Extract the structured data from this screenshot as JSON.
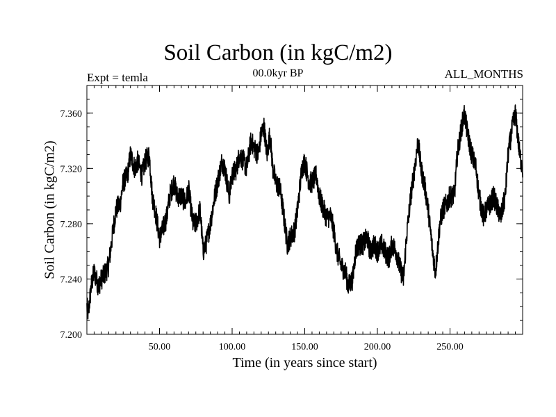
{
  "chart_data": {
    "type": "line",
    "title": "Soil Carbon (in kgC/m2)",
    "subtitle": "00.0kyr BP",
    "left_label": "Expt = temla",
    "right_label": "ALL_MONTHS",
    "xlabel": "Time (in years since start)",
    "ylabel": "Soil Carbon (in kgC/m2)",
    "xlim": [
      0,
      300
    ],
    "ylim": [
      7.2,
      7.38
    ],
    "xticks": [
      50,
      100,
      150,
      200,
      250
    ],
    "xtick_labels": [
      "50.00",
      "100.00",
      "150.00",
      "200.00",
      "250.00"
    ],
    "yticks": [
      7.2,
      7.24,
      7.28,
      7.32,
      7.36
    ],
    "ytick_labels": [
      "7.200",
      "7.240",
      "7.280",
      "7.320",
      "7.360"
    ],
    "noise_amplitude": 0.008,
    "series": [
      {
        "name": "Soil Carbon",
        "x": [
          0,
          1,
          3,
          5,
          8,
          10,
          13,
          15,
          18,
          20,
          23,
          25,
          28,
          30,
          33,
          35,
          38,
          40,
          43,
          45,
          47,
          50,
          52,
          55,
          57,
          60,
          62,
          65,
          68,
          70,
          73,
          75,
          78,
          80,
          82,
          85,
          88,
          90,
          93,
          95,
          98,
          100,
          103,
          105,
          108,
          110,
          113,
          115,
          118,
          120,
          122,
          124,
          126,
          128,
          130,
          133,
          135,
          138,
          140,
          143,
          145,
          148,
          150,
          153,
          155,
          158,
          160,
          163,
          165,
          168,
          170,
          172,
          175,
          178,
          180,
          183,
          185,
          187,
          190,
          193,
          195,
          198,
          200,
          203,
          205,
          208,
          210,
          213,
          215,
          218,
          220,
          223,
          225,
          228,
          230,
          233,
          235,
          238,
          240,
          243,
          245,
          248,
          250,
          253,
          255,
          258,
          260,
          262,
          265,
          268,
          270,
          273,
          275,
          278,
          280,
          283,
          285,
          288,
          290,
          293,
          295,
          298,
          300
        ],
        "values": [
          7.22,
          7.215,
          7.235,
          7.245,
          7.235,
          7.24,
          7.245,
          7.25,
          7.275,
          7.29,
          7.295,
          7.31,
          7.315,
          7.33,
          7.32,
          7.325,
          7.315,
          7.325,
          7.33,
          7.3,
          7.29,
          7.27,
          7.275,
          7.285,
          7.3,
          7.31,
          7.3,
          7.3,
          7.295,
          7.305,
          7.28,
          7.28,
          7.29,
          7.26,
          7.265,
          7.28,
          7.3,
          7.31,
          7.325,
          7.32,
          7.3,
          7.315,
          7.32,
          7.33,
          7.325,
          7.32,
          7.34,
          7.335,
          7.33,
          7.345,
          7.35,
          7.33,
          7.345,
          7.32,
          7.31,
          7.305,
          7.29,
          7.265,
          7.27,
          7.275,
          7.29,
          7.32,
          7.325,
          7.31,
          7.31,
          7.315,
          7.3,
          7.29,
          7.285,
          7.285,
          7.275,
          7.26,
          7.25,
          7.245,
          7.235,
          7.24,
          7.26,
          7.265,
          7.265,
          7.27,
          7.26,
          7.265,
          7.26,
          7.265,
          7.26,
          7.255,
          7.265,
          7.26,
          7.25,
          7.24,
          7.27,
          7.3,
          7.315,
          7.34,
          7.32,
          7.305,
          7.29,
          7.26,
          7.245,
          7.28,
          7.29,
          7.295,
          7.3,
          7.3,
          7.33,
          7.35,
          7.36,
          7.345,
          7.33,
          7.32,
          7.3,
          7.285,
          7.29,
          7.295,
          7.3,
          7.29,
          7.285,
          7.3,
          7.33,
          7.35,
          7.36,
          7.33,
          7.32
        ]
      }
    ]
  }
}
